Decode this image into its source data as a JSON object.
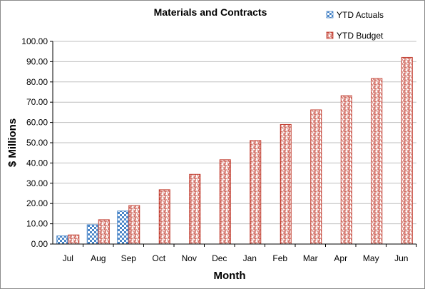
{
  "chart_data": {
    "type": "bar",
    "title": "Materials and Contracts",
    "xlabel": "Month",
    "ylabel": "$ Millions",
    "categories": [
      "Jul",
      "Aug",
      "Sep",
      "Oct",
      "Nov",
      "Dec",
      "Jan",
      "Feb",
      "Mar",
      "Apr",
      "May",
      "Jun"
    ],
    "series": [
      {
        "name": "YTD Actuals",
        "color": "#4a86c8",
        "pattern": "checker",
        "values": [
          4.0,
          9.5,
          16.3,
          null,
          null,
          null,
          null,
          null,
          null,
          null,
          null,
          null
        ]
      },
      {
        "name": "YTD Budget",
        "color": "#c0392b",
        "pattern": "maze",
        "values": [
          4.5,
          12.0,
          19.0,
          26.8,
          34.4,
          41.6,
          51.1,
          59.0,
          66.2,
          73.2,
          81.7,
          92.1
        ]
      }
    ],
    "ylim": [
      0,
      100
    ],
    "y_ticks": [
      "0.00",
      "10.00",
      "20.00",
      "30.00",
      "40.00",
      "50.00",
      "60.00",
      "70.00",
      "80.00",
      "90.00",
      "100.00"
    ],
    "grid": true,
    "legend_position": "top-right"
  }
}
